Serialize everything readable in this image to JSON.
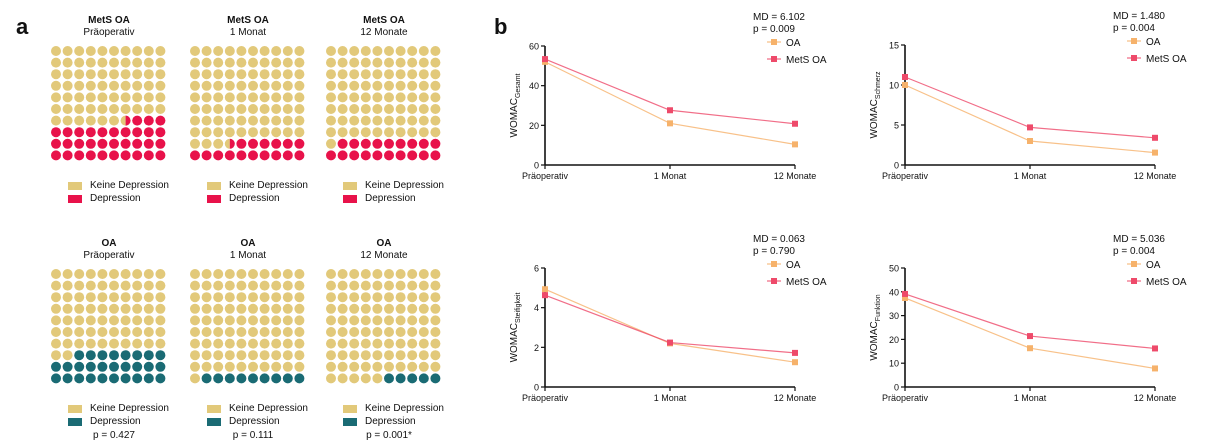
{
  "panels": {
    "a": "a",
    "b": "b"
  },
  "colors": {
    "keine": "#E2C97A",
    "mets_dep": "#E8124A",
    "oa_dep": "#1A6B74",
    "oa_line": "#F6B26B",
    "mets_line": "#EE4A6A"
  },
  "waffles": [
    {
      "title": "MetS OA",
      "subtitle": "Präoperativ",
      "depression": 33.5,
      "dep_color": "mets_dep"
    },
    {
      "title": "MetS OA",
      "subtitle": "1 Monat",
      "depression": 16.5,
      "dep_color": "mets_dep"
    },
    {
      "title": "MetS OA",
      "subtitle": "12 Monate",
      "depression": 19,
      "dep_color": "mets_dep"
    },
    {
      "title": "OA",
      "subtitle": "Präoperativ",
      "depression": 28,
      "dep_color": "oa_dep",
      "p": "p = 0.427"
    },
    {
      "title": "OA",
      "subtitle": "1 Monat",
      "depression": 9,
      "dep_color": "oa_dep",
      "p": "p = 0.111"
    },
    {
      "title": "OA",
      "subtitle": "12 Monate",
      "depression": 5,
      "dep_color": "oa_dep",
      "p": "p = 0.001*"
    }
  ],
  "legend": {
    "keine": "Keine Depression",
    "depression": "Depression"
  },
  "chart_data": [
    {
      "type": "waffle",
      "title": "MetS OA Präoperativ",
      "categories": [
        "Keine Depression",
        "Depression"
      ],
      "values": [
        66.5,
        33.5
      ]
    },
    {
      "type": "waffle",
      "title": "MetS OA 1 Monat",
      "categories": [
        "Keine Depression",
        "Depression"
      ],
      "values": [
        83.5,
        16.5
      ]
    },
    {
      "type": "waffle",
      "title": "MetS OA 12 Monate",
      "categories": [
        "Keine Depression",
        "Depression"
      ],
      "values": [
        81,
        19
      ]
    },
    {
      "type": "waffle",
      "title": "OA Präoperativ",
      "categories": [
        "Keine Depression",
        "Depression"
      ],
      "values": [
        72,
        28
      ],
      "annotation": "p = 0.427"
    },
    {
      "type": "waffle",
      "title": "OA 1 Monat",
      "categories": [
        "Keine Depression",
        "Depression"
      ],
      "values": [
        91,
        9
      ],
      "annotation": "p = 0.111"
    },
    {
      "type": "waffle",
      "title": "OA 12 Monate",
      "categories": [
        "Keine Depression",
        "Depression"
      ],
      "values": [
        95,
        5
      ],
      "annotation": "p = 0.001*"
    },
    {
      "type": "line",
      "ylabel": "WOMAC",
      "ylabel_sub": "Gesamt",
      "categories": [
        "Präoperativ",
        "1 Monat",
        "12 Monate"
      ],
      "ylim": [
        0,
        60
      ],
      "yticks": [
        0,
        20,
        40,
        60
      ],
      "annotation": [
        "MD = 6.102",
        "p = 0.009"
      ],
      "legend": "top-right",
      "series": [
        {
          "name": "OA",
          "values": [
            52,
            21,
            10.4
          ]
        },
        {
          "name": "MetS OA",
          "values": [
            53.4,
            27.6,
            20.8
          ]
        }
      ]
    },
    {
      "type": "line",
      "ylabel": "WOMAC",
      "ylabel_sub": "Schmerz",
      "categories": [
        "Präoperativ",
        "1 Monat",
        "12 Monate"
      ],
      "ylim": [
        0,
        15
      ],
      "yticks": [
        0,
        5,
        10,
        15
      ],
      "annotation": [
        "MD = 1.480",
        "p = 0.004"
      ],
      "legend": "top-right",
      "series": [
        {
          "name": "OA",
          "values": [
            10.0,
            3.0,
            1.55
          ]
        },
        {
          "name": "MetS OA",
          "values": [
            11.0,
            4.7,
            3.4
          ]
        }
      ]
    },
    {
      "type": "line",
      "ylabel": "WOMAC",
      "ylabel_sub": "Steifigkeit",
      "categories": [
        "Präoperativ",
        "1 Monat",
        "12 Monate"
      ],
      "ylim": [
        0,
        6
      ],
      "yticks": [
        0,
        2,
        4,
        6
      ],
      "annotation": [
        "MD = 0.063",
        "p = 0.790"
      ],
      "legend": "top-right",
      "series": [
        {
          "name": "OA",
          "values": [
            4.93,
            2.2,
            1.25
          ]
        },
        {
          "name": "MetS OA",
          "values": [
            4.63,
            2.24,
            1.72
          ]
        }
      ]
    },
    {
      "type": "line",
      "ylabel": "WOMAC",
      "ylabel_sub": "Funktion",
      "categories": [
        "Präoperativ",
        "1 Monat",
        "12 Monate"
      ],
      "ylim": [
        0,
        50
      ],
      "yticks": [
        0,
        10,
        20,
        30,
        40,
        50
      ],
      "annotation": [
        "MD = 5.036",
        "p = 0.004"
      ],
      "legend": "top-right",
      "series": [
        {
          "name": "OA",
          "values": [
            37.4,
            16.3,
            7.8
          ]
        },
        {
          "name": "MetS OA",
          "values": [
            39.1,
            21.4,
            16.2
          ]
        }
      ]
    }
  ]
}
